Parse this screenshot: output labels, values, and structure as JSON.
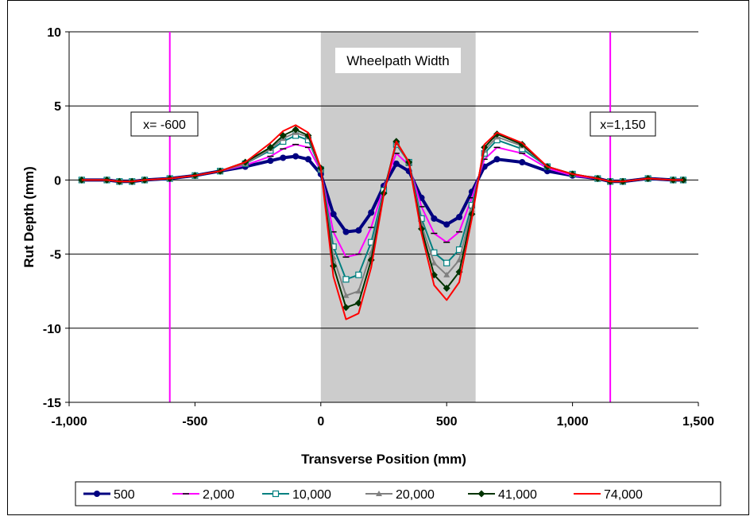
{
  "chart_data": {
    "type": "line",
    "title": "",
    "xlabel": "Transverse Position (mm)",
    "ylabel": "Rut Depth (mm)",
    "xlim": [
      -1000,
      1500
    ],
    "ylim": [
      -15,
      10
    ],
    "x_ticks": [
      {
        "value": -1000,
        "label": "-1,000"
      },
      {
        "value": -500,
        "label": "-500"
      },
      {
        "value": 0,
        "label": "0"
      },
      {
        "value": 500,
        "label": "500"
      },
      {
        "value": 1000,
        "label": "1,000"
      },
      {
        "value": 1500,
        "label": "1,500"
      }
    ],
    "y_ticks": [
      {
        "value": 10,
        "label": "10"
      },
      {
        "value": 5,
        "label": "5"
      },
      {
        "value": 0,
        "label": "0"
      },
      {
        "value": -5,
        "label": "-5"
      },
      {
        "value": -10,
        "label": "-10"
      },
      {
        "value": -15,
        "label": "-15"
      }
    ],
    "grid": "horizontal",
    "legend_position": "bottom",
    "shaded_region": {
      "x_start": 0,
      "x_end": 615,
      "label": "Wheelpath Width",
      "color": "#cccccc"
    },
    "reference_lines": [
      {
        "x": -600,
        "label": "x= -600",
        "color": "#ff00ff"
      },
      {
        "x": 1150,
        "label": "x=1,150",
        "color": "#ff00ff"
      }
    ],
    "x": [
      -950,
      -850,
      -800,
      -750,
      -700,
      -600,
      -500,
      -400,
      -300,
      -200,
      -150,
      -100,
      -50,
      0,
      50,
      100,
      150,
      200,
      250,
      300,
      350,
      400,
      450,
      500,
      550,
      600,
      650,
      700,
      800,
      900,
      1000,
      1100,
      1150,
      1200,
      1300,
      1400,
      1440
    ],
    "series": [
      {
        "name": "500",
        "color": "#000080",
        "marker": "circle",
        "values": [
          0.0,
          0.0,
          -0.1,
          -0.1,
          0.0,
          0.1,
          0.3,
          0.6,
          0.9,
          1.3,
          1.5,
          1.6,
          1.4,
          0.4,
          -2.3,
          -3.5,
          -3.4,
          -2.2,
          -0.4,
          1.1,
          0.6,
          -1.2,
          -2.6,
          -3.0,
          -2.5,
          -0.8,
          0.9,
          1.4,
          1.2,
          0.6,
          0.3,
          0.1,
          -0.1,
          -0.1,
          0.1,
          0.0,
          0.0
        ]
      },
      {
        "name": "2,000",
        "color": "#ff00ff",
        "marker": "dash",
        "values": [
          0.0,
          0.0,
          -0.1,
          -0.1,
          0.0,
          0.1,
          0.3,
          0.6,
          1.0,
          1.6,
          2.1,
          2.4,
          2.2,
          0.6,
          -3.5,
          -5.2,
          -5.0,
          -3.2,
          -0.5,
          1.8,
          1.0,
          -1.8,
          -3.6,
          -4.2,
          -3.5,
          -1.2,
          1.4,
          2.2,
          1.8,
          0.8,
          0.3,
          0.1,
          -0.1,
          -0.1,
          0.1,
          0.0,
          0.0
        ]
      },
      {
        "name": "10,000",
        "color": "#008080",
        "marker": "square",
        "values": [
          0.0,
          0.0,
          -0.1,
          -0.1,
          0.0,
          0.1,
          0.3,
          0.6,
          1.1,
          2.0,
          2.6,
          3.0,
          2.7,
          0.7,
          -4.5,
          -6.7,
          -6.4,
          -4.2,
          -0.7,
          2.4,
          1.2,
          -2.6,
          -4.9,
          -5.6,
          -4.7,
          -1.7,
          1.8,
          2.7,
          2.1,
          0.9,
          0.4,
          0.1,
          -0.1,
          -0.1,
          0.1,
          0.0,
          0.0
        ]
      },
      {
        "name": "20,000",
        "color": "#808080",
        "marker": "triangle",
        "values": [
          0.0,
          0.0,
          -0.1,
          -0.1,
          0.0,
          0.1,
          0.3,
          0.6,
          1.1,
          2.1,
          2.8,
          3.2,
          2.9,
          0.7,
          -5.2,
          -7.8,
          -7.5,
          -4.9,
          -0.8,
          2.5,
          1.2,
          -3.0,
          -5.6,
          -6.4,
          -5.4,
          -2.0,
          2.0,
          2.9,
          2.3,
          0.9,
          0.4,
          0.1,
          -0.1,
          -0.1,
          0.1,
          0.0,
          0.0
        ]
      },
      {
        "name": "41,000",
        "color": "#003300",
        "marker": "diamond",
        "values": [
          0.0,
          0.0,
          -0.1,
          -0.1,
          0.0,
          0.1,
          0.3,
          0.6,
          1.2,
          2.2,
          3.0,
          3.4,
          3.0,
          0.8,
          -5.8,
          -8.6,
          -8.3,
          -5.4,
          -0.9,
          2.6,
          1.2,
          -3.3,
          -6.4,
          -7.3,
          -6.2,
          -2.3,
          2.2,
          3.1,
          2.4,
          0.9,
          0.4,
          0.1,
          -0.1,
          -0.1,
          0.1,
          0.0,
          0.0
        ]
      },
      {
        "name": "74,000",
        "color": "#ff0000",
        "marker": "none",
        "values": [
          0.0,
          0.0,
          -0.1,
          -0.1,
          0.0,
          0.1,
          0.3,
          0.6,
          1.2,
          2.5,
          3.3,
          3.7,
          3.2,
          0.8,
          -6.5,
          -9.4,
          -9.0,
          -5.9,
          -1.0,
          2.6,
          1.2,
          -3.6,
          -7.1,
          -8.1,
          -6.9,
          -2.6,
          2.4,
          3.2,
          2.5,
          0.9,
          0.4,
          0.1,
          -0.1,
          -0.1,
          0.1,
          0.0,
          0.0
        ]
      }
    ]
  }
}
